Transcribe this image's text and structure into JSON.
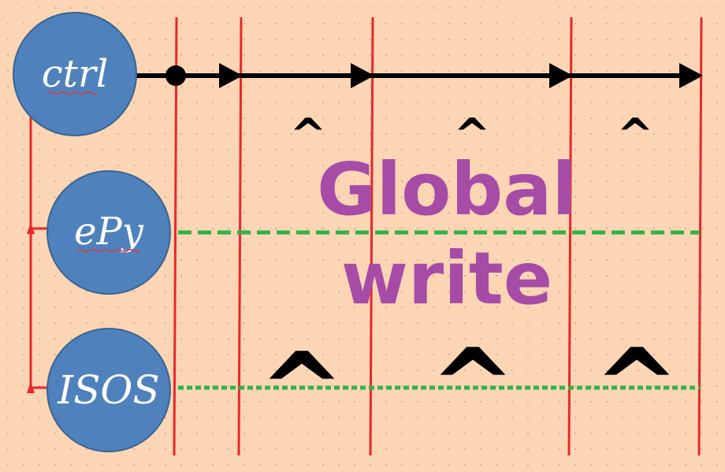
{
  "nodes": {
    "ctrl": "ctrl",
    "epy": "ePy",
    "isos": "ISOS"
  },
  "title": {
    "line1": "Global",
    "line2": "write"
  },
  "markers": {
    "small": "^",
    "large": "^"
  },
  "colors": {
    "background": "#fcd5b5",
    "node_fill": "#4f81bd",
    "node_stroke": "#3a6491",
    "timeline": "#e8282a",
    "arrow": "#000000",
    "dashed": "#2db34a",
    "title": "#a64ca6",
    "node_text": "#ffffff",
    "underline": "#d04040"
  }
}
